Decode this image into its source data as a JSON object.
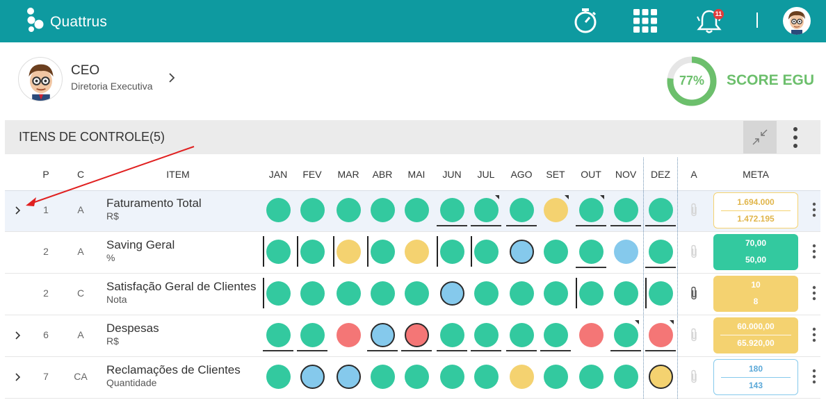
{
  "app": {
    "brand": "Quattrus",
    "notification_count": "11"
  },
  "profile": {
    "title": "CEO",
    "subtitle": "Diretoria Executiva"
  },
  "score": {
    "percent_label": "77%",
    "percent_value": 77,
    "label": "SCORE EGU"
  },
  "section": {
    "title": "ITENS DE CONTROLE(5)"
  },
  "columns": {
    "p": "P",
    "c": "C",
    "item": "ITEM",
    "months": [
      "JAN",
      "FEV",
      "MAR",
      "ABR",
      "MAI",
      "JUN",
      "JUL",
      "AGO",
      "SET",
      "OUT",
      "NOV",
      "DEZ"
    ],
    "a": "A",
    "meta": "META"
  },
  "colors": {
    "header": "#0e9aa0",
    "green": "#33c99f",
    "yellow": "#f4d270",
    "red": "#f47676",
    "blue": "#85c9ec",
    "score": "#6cbf6c",
    "annotation_arrow": "#e02020"
  },
  "rows": [
    {
      "p": "1",
      "c": "A",
      "name": "Faturamento Total",
      "unit": "R$",
      "expandable": true,
      "attachment": false,
      "meta": {
        "v1": "1.694.000",
        "v2": "1.472.195",
        "style": "outline-yellow"
      },
      "months": [
        {
          "s": "g"
        },
        {
          "s": "g"
        },
        {
          "s": "g"
        },
        {
          "s": "g"
        },
        {
          "s": "g"
        },
        {
          "s": "g",
          "u": true
        },
        {
          "s": "g",
          "u": true,
          "k": true
        },
        {
          "s": "g",
          "u": true
        },
        {
          "s": "y",
          "k": true
        },
        {
          "s": "g",
          "u": true,
          "k": true
        },
        {
          "s": "g",
          "u": true
        },
        {
          "s": "g",
          "u": true
        }
      ]
    },
    {
      "p": "2",
      "c": "A",
      "name": "Saving Geral",
      "unit": "%",
      "expandable": false,
      "attachment": false,
      "meta": {
        "v1": "70,00",
        "v2": "50,00",
        "style": "solid-green"
      },
      "months": [
        {
          "s": "g",
          "l": true
        },
        {
          "s": "g",
          "l": true
        },
        {
          "s": "y",
          "l": true
        },
        {
          "s": "g",
          "l": true
        },
        {
          "s": "y"
        },
        {
          "s": "g",
          "l": true
        },
        {
          "s": "g",
          "l": true
        },
        {
          "s": "b",
          "r": true
        },
        {
          "s": "g"
        },
        {
          "s": "g",
          "u": true
        },
        {
          "s": "b"
        },
        {
          "s": "g",
          "u": true
        }
      ]
    },
    {
      "p": "2",
      "c": "C",
      "name": "Satisfação Geral de Clientes",
      "unit": "Nota",
      "expandable": false,
      "attachment": true,
      "meta": {
        "v1": "10",
        "v2": "8",
        "style": "solid-yellow"
      },
      "months": [
        {
          "s": "g",
          "l": true
        },
        {
          "s": "g"
        },
        {
          "s": "g"
        },
        {
          "s": "g"
        },
        {
          "s": "g"
        },
        {
          "s": "b",
          "r": true
        },
        {
          "s": "g"
        },
        {
          "s": "g"
        },
        {
          "s": "g"
        },
        {
          "s": "g",
          "l": true
        },
        {
          "s": "g"
        },
        {
          "s": "g",
          "l": true
        }
      ]
    },
    {
      "p": "6",
      "c": "A",
      "name": "Despesas",
      "unit": "R$",
      "expandable": true,
      "attachment": false,
      "meta": {
        "v1": "60.000,00",
        "v2": "65.920,00",
        "style": "solid-yellow-divided"
      },
      "months": [
        {
          "s": "g",
          "u": true
        },
        {
          "s": "g",
          "u": true
        },
        {
          "s": "rd"
        },
        {
          "s": "b",
          "r": true,
          "u": true
        },
        {
          "s": "rd",
          "r": true,
          "u": true
        },
        {
          "s": "g",
          "u": true
        },
        {
          "s": "g",
          "u": true
        },
        {
          "s": "g",
          "u": true
        },
        {
          "s": "g",
          "u": true
        },
        {
          "s": "rd"
        },
        {
          "s": "g",
          "u": true,
          "k": true
        },
        {
          "s": "rd",
          "u": true,
          "k": true
        }
      ]
    },
    {
      "p": "7",
      "c": "CA",
      "name": "Reclamações de Clientes",
      "unit": "Quantidade",
      "expandable": true,
      "attachment": false,
      "meta": {
        "v1": "180",
        "v2": "143",
        "style": "outline-blue"
      },
      "months": [
        {
          "s": "g"
        },
        {
          "s": "b",
          "r": true
        },
        {
          "s": "b",
          "r": true
        },
        {
          "s": "g"
        },
        {
          "s": "g"
        },
        {
          "s": "g"
        },
        {
          "s": "g"
        },
        {
          "s": "y"
        },
        {
          "s": "g"
        },
        {
          "s": "g"
        },
        {
          "s": "g"
        },
        {
          "s": "y",
          "r": true
        }
      ]
    }
  ]
}
